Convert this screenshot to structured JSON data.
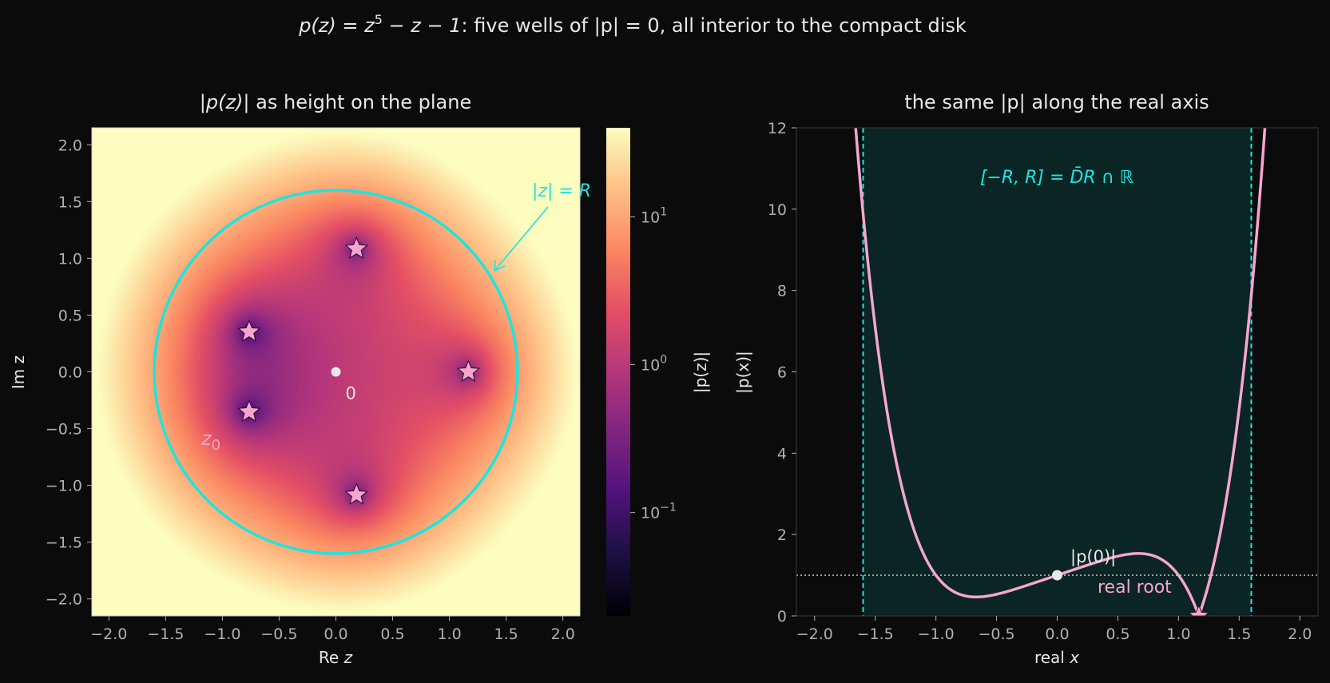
{
  "suptitle": {
    "p_lhs": "p(z)",
    "eq": " = ",
    "z": "z",
    "exp": "5",
    "rest": " − z − 1",
    "text": ": five wells of |p| = 0, all interior to the compact disk"
  },
  "colors": {
    "background": "#0b0b0b",
    "text": "#e8e8e8",
    "tick": "#b0b0b0",
    "cyan": "#19e6e0",
    "pink": "#f4a6d0",
    "band_fill": "#0b2424"
  },
  "chart_data": [
    {
      "type": "heatmap",
      "title_prefix": "|",
      "title_p": "p(z)",
      "title_suffix": "| as height on the plane",
      "xlabel_prefix": "Re ",
      "xlabel_var": "z",
      "ylabel": "Im z",
      "xlim": [
        -2.15,
        2.15
      ],
      "ylim": [
        -2.15,
        2.15
      ],
      "xticks": [
        -2.0,
        -1.5,
        -1.0,
        -0.5,
        0.0,
        0.5,
        1.0,
        1.5,
        2.0
      ],
      "yticks": [
        -2.0,
        -1.5,
        -1.0,
        -0.5,
        0.0,
        0.5,
        1.0,
        1.5,
        2.0
      ],
      "xtick_labels": [
        "−2.0",
        "−1.5",
        "−1.0",
        "−0.5",
        "0.0",
        "0.5",
        "1.0",
        "1.5",
        "2.0"
      ],
      "ytick_labels": [
        "−2.0",
        "−1.5",
        "−1.0",
        "−0.5",
        "0.0",
        "0.5",
        "1.0",
        "1.5",
        "2.0"
      ],
      "colormap": "magma",
      "color_scale": "log",
      "colorbar": {
        "label": "|p(z)|",
        "range": [
          0.02,
          40
        ],
        "ticks": [
          0.1,
          1,
          10
        ],
        "tick_base": "10",
        "tick_exps": [
          "−1",
          "0",
          "1"
        ]
      },
      "circle_radius": 1.6,
      "circle_label": "|z| = R",
      "origin_label": "0",
      "z0_label": "z",
      "z0_sub": "0",
      "roots": [
        {
          "re": 1.1673,
          "im": 0.0
        },
        {
          "re": 0.1812,
          "im": 1.084
        },
        {
          "re": 0.1812,
          "im": -1.084
        },
        {
          "re": -0.7649,
          "im": 0.3525
        },
        {
          "re": -0.7649,
          "im": -0.3525
        }
      ]
    },
    {
      "type": "line",
      "title": "the same |p| along the real axis",
      "xlabel_prefix": "real ",
      "xlabel_var": "x",
      "ylabel": "|p(x)|",
      "xlim": [
        -2.15,
        2.15
      ],
      "ylim": [
        0,
        12
      ],
      "xticks": [
        -2.0,
        -1.5,
        -1.0,
        -0.5,
        0.0,
        0.5,
        1.0,
        1.5,
        2.0
      ],
      "yticks": [
        0,
        2,
        4,
        6,
        8,
        10,
        12
      ],
      "xtick_labels": [
        "−2.0",
        "−1.5",
        "−1.0",
        "−0.5",
        "0.0",
        "0.5",
        "1.0",
        "1.5",
        "2.0"
      ],
      "ytick_labels": [
        "0",
        "2",
        "4",
        "6",
        "8",
        "10",
        "12"
      ],
      "band": [
        -1.6,
        1.6
      ],
      "band_label": "[−R, R] = D̄R ∩ ℝ",
      "hline": 1,
      "p0_label": "|p(0)|",
      "p0_point": {
        "x": 0,
        "y": 1
      },
      "root_label": "real root",
      "root_x": 1.1673
    }
  ]
}
